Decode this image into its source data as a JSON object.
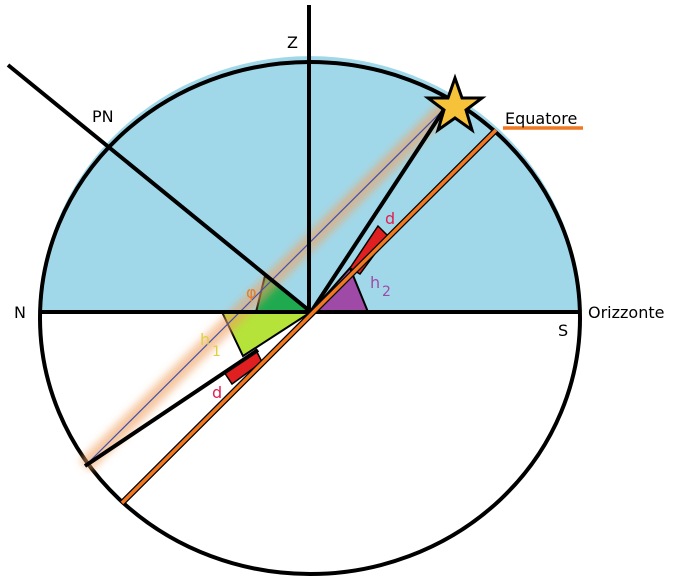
{
  "labels": {
    "zenith": "Z",
    "north_pole": "PN",
    "north": "N",
    "south": "S",
    "horizon": "Orizzonte",
    "equator": "Equatore",
    "d_upper": "d",
    "d_lower": "d",
    "h2": "h",
    "h2_sub": "2",
    "h1": "h",
    "h1_sub": "1",
    "phi": "φ"
  }
}
